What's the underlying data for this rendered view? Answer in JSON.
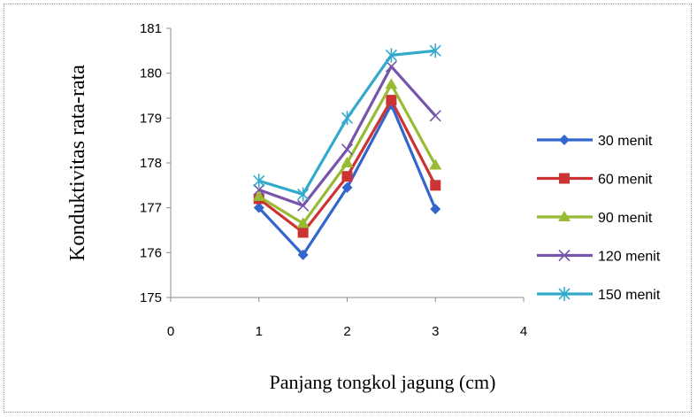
{
  "chart_data": {
    "type": "line",
    "title": "",
    "xlabel": "Panjang tongkol jagung (cm)",
    "ylabel": "Konduktivitas rata-rata",
    "xlim": [
      0,
      4
    ],
    "ylim": [
      175,
      181
    ],
    "xticks": [
      "0",
      "1",
      "2",
      "3",
      "4"
    ],
    "yticks": [
      "175",
      "176",
      "177",
      "178",
      "179",
      "180",
      "181"
    ],
    "x": [
      1,
      1.5,
      2,
      2.5,
      3
    ],
    "grid": false,
    "legend_position": "right",
    "series": [
      {
        "name": "30 menit",
        "values": [
          177.0,
          175.95,
          177.45,
          179.3,
          176.97
        ],
        "color": "#3366cc",
        "marker": "diamond"
      },
      {
        "name": "60 menit",
        "values": [
          177.2,
          176.45,
          177.7,
          179.4,
          177.5
        ],
        "color": "#cc3333",
        "marker": "square"
      },
      {
        "name": "90 menit",
        "values": [
          177.25,
          176.65,
          178.0,
          179.75,
          177.95
        ],
        "color": "#99bb33",
        "marker": "triangle"
      },
      {
        "name": "120 menit",
        "values": [
          177.4,
          177.05,
          178.3,
          180.15,
          179.05
        ],
        "color": "#7755aa",
        "marker": "x"
      },
      {
        "name": "150 menit",
        "values": [
          177.6,
          177.3,
          179.0,
          180.4,
          180.5
        ],
        "color": "#33aacc",
        "marker": "star"
      }
    ]
  }
}
